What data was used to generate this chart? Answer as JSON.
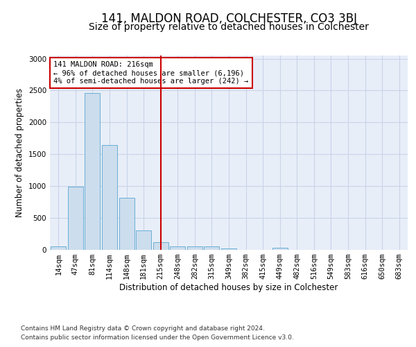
{
  "title": "141, MALDON ROAD, COLCHESTER, CO3 3BJ",
  "subtitle": "Size of property relative to detached houses in Colchester",
  "xlabel": "Distribution of detached houses by size in Colchester",
  "ylabel": "Number of detached properties",
  "categories": [
    "14sqm",
    "47sqm",
    "81sqm",
    "114sqm",
    "148sqm",
    "181sqm",
    "215sqm",
    "248sqm",
    "282sqm",
    "315sqm",
    "349sqm",
    "382sqm",
    "415sqm",
    "449sqm",
    "482sqm",
    "516sqm",
    "549sqm",
    "583sqm",
    "616sqm",
    "650sqm",
    "683sqm"
  ],
  "values": [
    50,
    990,
    2460,
    1650,
    820,
    300,
    115,
    55,
    55,
    50,
    25,
    0,
    0,
    35,
    0,
    0,
    0,
    0,
    0,
    0,
    0
  ],
  "bar_color": "#ccdded",
  "bar_edge_color": "#6aafd6",
  "grid_color": "#c8d4e8",
  "background_color": "#e8eef8",
  "annotation_box_color": "#cc0000",
  "property_line_x": 6.0,
  "annotation_text_line1": "141 MALDON ROAD: 216sqm",
  "annotation_text_line2": "← 96% of detached houses are smaller (6,196)",
  "annotation_text_line3": "4% of semi-detached houses are larger (242) →",
  "footer_line1": "Contains HM Land Registry data © Crown copyright and database right 2024.",
  "footer_line2": "Contains public sector information licensed under the Open Government Licence v3.0.",
  "ylim": [
    0,
    3050
  ],
  "title_fontsize": 12,
  "subtitle_fontsize": 10,
  "axis_label_fontsize": 8.5,
  "tick_fontsize": 7.5,
  "annotation_fontsize": 7.5,
  "footer_fontsize": 6.5
}
